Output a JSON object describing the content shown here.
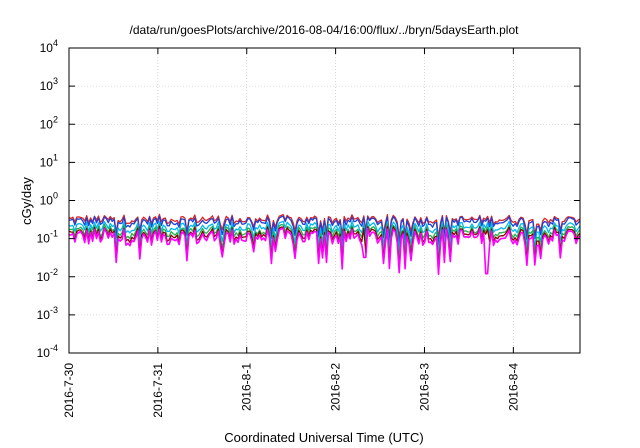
{
  "chart_data": {
    "type": "line",
    "title": "/data/run/goesPlots/archive/2016-08-04/16:00/flux/../bryn/5daysEarth.plot",
    "xlabel": "Coordinated Universal Time (UTC)",
    "ylabel": "cGy/day",
    "yscale": "log",
    "ylim": [
      0.0001,
      10000
    ],
    "xlim": [
      "2016-07-30 00:00",
      "2016-08-04 18:00"
    ],
    "grid": true,
    "x_ticks": [
      "2016-7-30",
      "2016-7-31",
      "2016-8-1",
      "2016-8-2",
      "2016-8-3",
      "2016-8-4"
    ],
    "y_ticks": [
      {
        "base": "10",
        "exp": "-4"
      },
      {
        "base": "10",
        "exp": "-3"
      },
      {
        "base": "10",
        "exp": "-2"
      },
      {
        "base": "10",
        "exp": "-1"
      },
      {
        "base": "10",
        "exp": "0"
      },
      {
        "base": "10",
        "exp": "1"
      },
      {
        "base": "10",
        "exp": "2"
      },
      {
        "base": "10",
        "exp": "3"
      },
      {
        "base": "10",
        "exp": "4"
      }
    ],
    "series": [
      {
        "color": "#d62728",
        "baseline": 0.32
      },
      {
        "color": "#1f3fd6",
        "baseline": 0.28
      },
      {
        "color": "#00b8f0",
        "baseline": 0.2
      },
      {
        "color": "#22b14c",
        "baseline": 0.155
      },
      {
        "color": "#8b0000",
        "baseline": 0.13
      },
      {
        "color": "#ff00ff",
        "baseline": 0.11,
        "dips": [
          {
            "x": "2016-08-02 08:00",
            "y": 0.032
          },
          {
            "x": "2016-08-03 17:00",
            "y": 0.012
          }
        ]
      }
    ]
  }
}
